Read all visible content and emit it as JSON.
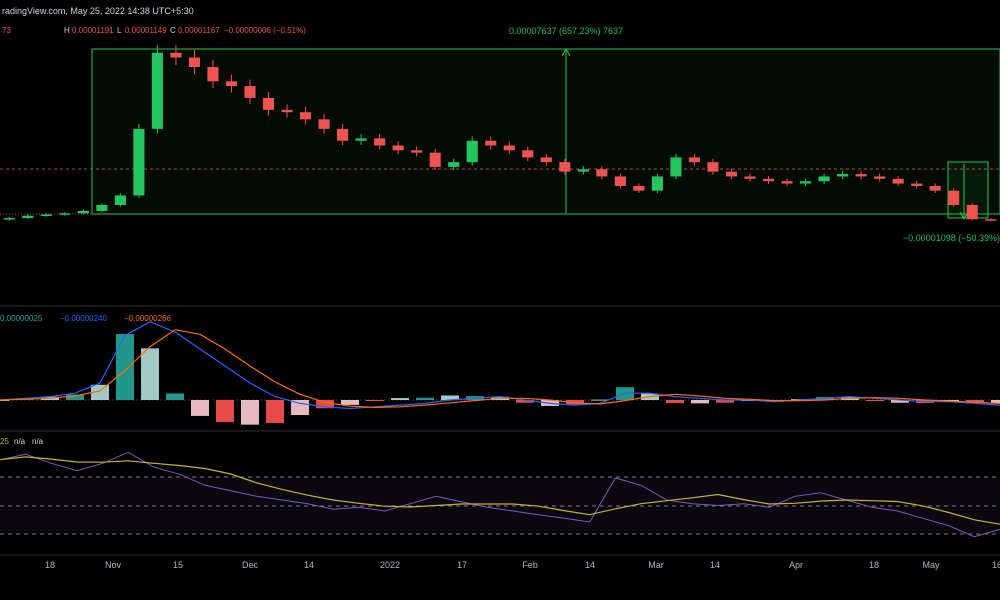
{
  "header": {
    "title": "radingView.com, May 25, 2022 14:38 UTC+5:30",
    "ohlc_prefix": "73",
    "h_label": "H",
    "h_value": "0.00001191",
    "l_label": "L",
    "l_value": "0.00001149",
    "c_label": "C",
    "c_value": "0.00001167",
    "change": "−0.00000006 (−0.51%)"
  },
  "annotations": {
    "range_up": "0.00007637 (657.23%) 7637",
    "range_down": "−0.00001098 (−50.39%)"
  },
  "macd_legend": {
    "hist": "0.00000025",
    "macd": "−0.00000240",
    "signal": "−0.00000266"
  },
  "rsi_legend": {
    "period": "25",
    "v1": "n/a",
    "v2": "n/a"
  },
  "colors": {
    "background": "#000000",
    "up": "#26a69a",
    "up_candle": "#22c55e",
    "down": "#ef5350",
    "macd_line": "#2962ff",
    "signal_line": "#ff6d00",
    "hist_pos": "#26a69a",
    "hist_pos_light": "#b2dfdb",
    "hist_neg": "#ff5252",
    "hist_neg_light": "#ffcdd2",
    "rsi_line": "#7e57c2",
    "rsi_ma": "#c9b03a",
    "measure": "#26c447",
    "text": "#d1d4dc",
    "axis_text": "#b2b5be"
  },
  "x_axis": {
    "labels": [
      "18",
      "Nov",
      "15",
      "Dec",
      "14",
      "2022",
      "17",
      "Feb",
      "14",
      "Mar",
      "14",
      "Apr",
      "18",
      "May",
      "16"
    ]
  },
  "chart_data": [
    {
      "type": "candlestick",
      "period": "Oct 2021 – May 2022",
      "close_approx": [
        1.25e-05,
        1.35e-05,
        1.4e-05,
        1.45e-05,
        1.55e-05,
        1.8e-05,
        2.2e-05,
        5e-05,
        8.2e-05,
        8e-05,
        7.6e-05,
        7e-05,
        6.8e-05,
        6.3e-05,
        5.8e-05,
        5.7e-05,
        5.4e-05,
        5e-05,
        4.5e-05,
        4.6e-05,
        4.3e-05,
        4.1e-05,
        4e-05,
        3.4e-05,
        3.6e-05,
        4.5e-05,
        4.3e-05,
        4.1e-05,
        3.8e-05,
        3.6e-05,
        3.2e-05,
        3.3e-05,
        3e-05,
        2.6e-05,
        2.4e-05,
        3e-05,
        3.8e-05,
        3.6e-05,
        3.2e-05,
        3e-05,
        2.9e-05,
        2.8e-05,
        2.7e-05,
        2.8e-05,
        3e-05,
        3.1e-05,
        3e-05,
        2.9e-05,
        2.7e-05,
        2.6e-05,
        2.4e-05,
        1.8e-05,
        1.2e-05,
        1.17e-05
      ],
      "measure_up": {
        "label": "0.00007637 (657.23%) 7637"
      },
      "measure_down": {
        "label": "−0.00001098 (−50.39%)"
      }
    },
    {
      "type": "macd",
      "values": {
        "hist": 2.5e-07,
        "macd": -2.4e-06,
        "signal": -2.66e-06
      },
      "macd_approx": [
        0,
        1,
        2,
        4,
        10,
        38,
        46,
        40,
        30,
        20,
        10,
        2,
        -2,
        -4,
        -5,
        -4,
        -3,
        -2,
        0,
        1,
        2,
        0,
        -2,
        -3,
        -2,
        4,
        4,
        2,
        1,
        0,
        0,
        -1,
        0,
        1,
        2,
        1,
        0,
        -1,
        -1,
        -2,
        -3
      ]
    },
    {
      "type": "rsi",
      "period": 25,
      "rsi_approx": [
        72,
        75,
        70,
        66,
        70,
        76,
        68,
        64,
        58,
        55,
        52,
        50,
        48,
        45,
        46,
        44,
        48,
        52,
        49,
        46,
        44,
        42,
        40,
        38,
        62,
        58,
        50,
        48,
        47,
        48,
        46,
        52,
        54,
        50,
        46,
        44,
        40,
        36,
        30,
        34
      ]
    }
  ]
}
